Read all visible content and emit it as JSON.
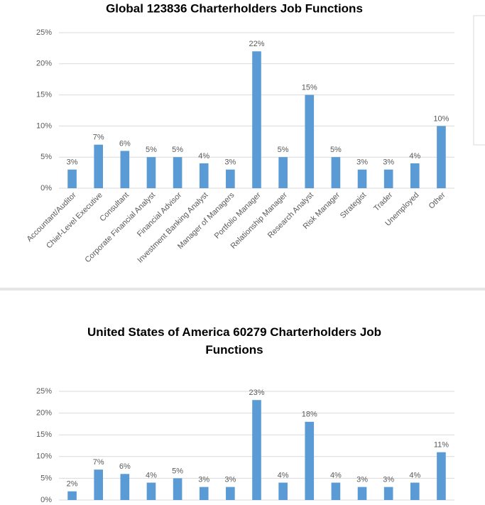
{
  "chart_data": [
    {
      "type": "bar",
      "title": "Global 123836 Charterholders Job Functions",
      "categories": [
        "Accountant/Auditor",
        "Chief-Level Executive",
        "Consultant",
        "Corporate Financial Analyst",
        "Financial Advisor",
        "Investment Banking Analyst",
        "Manager of Managers",
        "Portfolio Manager",
        "Relationship Manager",
        "Research Analyst",
        "Risk Manager",
        "Strategist",
        "Trader",
        "Unemployed",
        "Other"
      ],
      "values": [
        3,
        7,
        6,
        5,
        5,
        4,
        3,
        22,
        5,
        15,
        5,
        3,
        3,
        4,
        10
      ],
      "value_labels": [
        "3%",
        "7%",
        "6%",
        "5%",
        "5%",
        "4%",
        "3%",
        "22%",
        "5%",
        "15%",
        "5%",
        "3%",
        "3%",
        "4%",
        "10%"
      ],
      "color": "#5b9bd5",
      "ylim": [
        0,
        25
      ],
      "yticks": [
        {
          "value": 0,
          "label": "0%"
        },
        {
          "value": 5,
          "label": "5%"
        },
        {
          "value": 10,
          "label": "10%"
        },
        {
          "value": 15,
          "label": "15%"
        },
        {
          "value": 20,
          "label": "20%"
        },
        {
          "value": 25,
          "label": "25%"
        }
      ],
      "grid": true
    },
    {
      "type": "bar",
      "title": "United States of  America 60279 Charterholders Job Functions",
      "values": [
        2,
        7,
        6,
        4,
        5,
        3,
        3,
        23,
        4,
        18,
        4,
        3,
        3,
        4,
        11
      ],
      "value_labels": [
        "2%",
        "7%",
        "6%",
        "4%",
        "5%",
        "3%",
        "3%",
        "23%",
        "4%",
        "18%",
        "4%",
        "3%",
        "3%",
        "4%",
        "11%"
      ],
      "color": "#5b9bd5",
      "ylim": [
        0,
        25
      ],
      "yticks": [
        {
          "value": 0,
          "label": "0%"
        },
        {
          "value": 5,
          "label": "5%"
        },
        {
          "value": 10,
          "label": "10%"
        },
        {
          "value": 15,
          "label": "15%"
        },
        {
          "value": 20,
          "label": "20%"
        },
        {
          "value": 25,
          "label": "25%"
        }
      ],
      "grid": true
    }
  ]
}
